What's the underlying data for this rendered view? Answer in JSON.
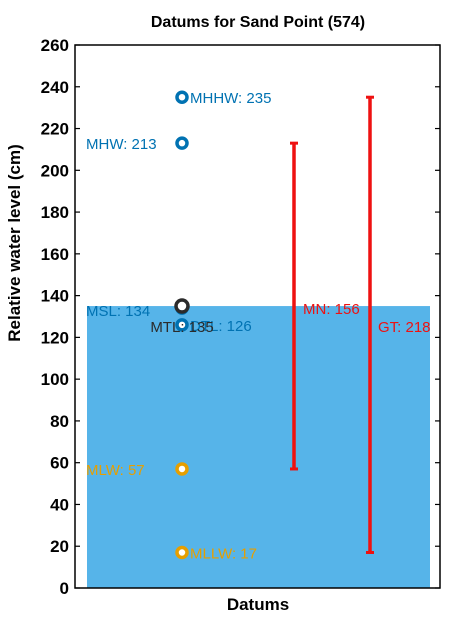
{
  "chart_data": {
    "type": "scatter",
    "title": "Datums for Sand Point (574)",
    "xlabel": "Datums",
    "ylabel": "Relative water level (cm)",
    "ylim": [
      0,
      260
    ],
    "yticks": [
      0,
      20,
      40,
      60,
      80,
      100,
      120,
      140,
      160,
      180,
      200,
      220,
      240,
      260
    ],
    "grid": false,
    "fill_level": 135,
    "colors": {
      "fill": "#56b4e9",
      "high": "#0072b2",
      "mean": "#2b2b2b",
      "low": "#e69f00",
      "range": "#ee1111"
    },
    "points": [
      {
        "label": "MHHW: 235",
        "value": 235,
        "group": "high",
        "label_side": "right"
      },
      {
        "label": "MHW: 213",
        "value": 213,
        "group": "high",
        "label_side": "left"
      },
      {
        "label": "DTL: 126",
        "value": 126,
        "group": "high",
        "label_side": "right"
      },
      {
        "label": "MSL: 134",
        "value": 134,
        "group": "high",
        "label_side": "left"
      },
      {
        "label": "MTL: 135",
        "value": 135,
        "group": "mean",
        "label_side": "center"
      },
      {
        "label": "MLW: 57",
        "value": 57,
        "group": "low",
        "label_side": "left"
      },
      {
        "label": "MLLW: 17",
        "value": 17,
        "group": "low",
        "label_side": "right"
      }
    ],
    "ranges": [
      {
        "label": "MN: 156",
        "low": 57,
        "high": 213,
        "position": "inner"
      },
      {
        "label": "GT: 218",
        "low": 17,
        "high": 235,
        "position": "outer"
      }
    ]
  }
}
